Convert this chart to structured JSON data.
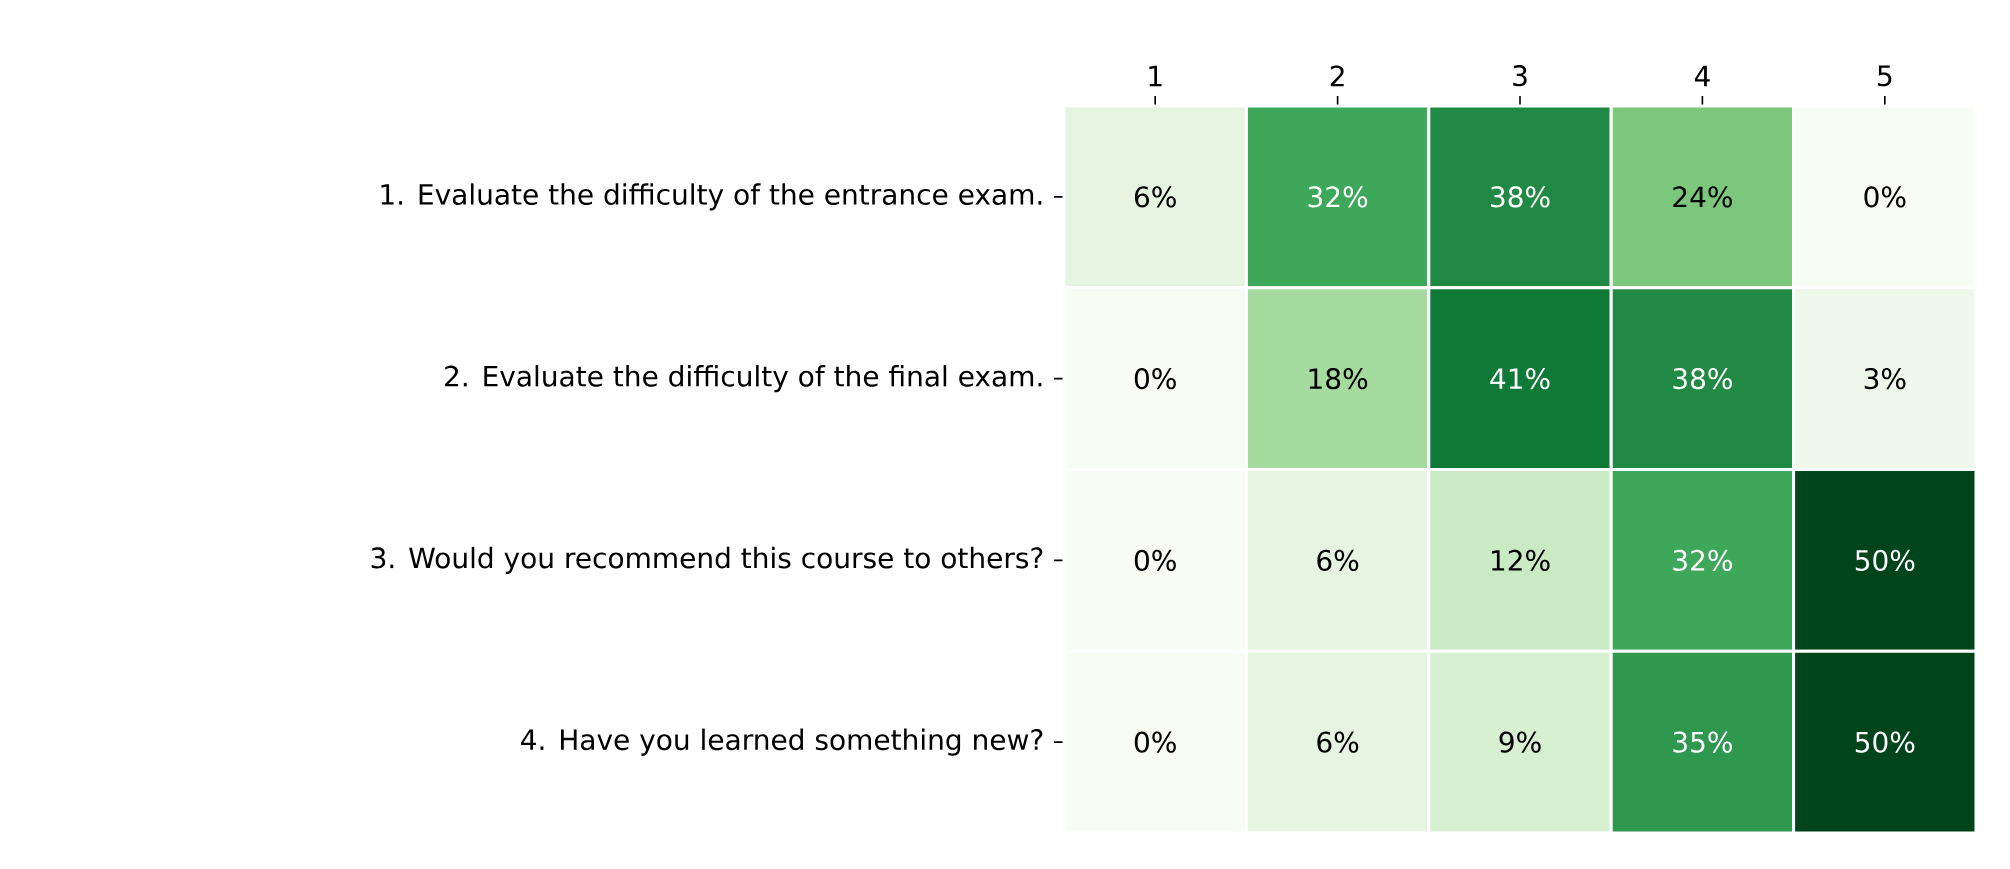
{
  "chart_data": {
    "type": "heatmap",
    "categories": [
      "1",
      "2",
      "3",
      "4",
      "5"
    ],
    "y_categories": [
      "1. Evaluate the difficulty of the entrance exam.",
      "2. Evaluate the difficulty of the final exam.",
      "3. Would you recommend this course to others?",
      "4. Have you learned something new?"
    ],
    "cells": [
      [
        6,
        32,
        38,
        24,
        0
      ],
      [
        0,
        18,
        41,
        38,
        3
      ],
      [
        0,
        6,
        12,
        32,
        50
      ],
      [
        0,
        6,
        9,
        35,
        50
      ]
    ],
    "cell_labels": [
      [
        "6%",
        "32%",
        "38%",
        "24%",
        "0%"
      ],
      [
        "0%",
        "18%",
        "41%",
        "38%",
        "3%"
      ],
      [
        "0%",
        "6%",
        "12%",
        "32%",
        "50%"
      ],
      [
        "0%",
        "6%",
        "9%",
        "35%",
        "50%"
      ]
    ]
  }
}
